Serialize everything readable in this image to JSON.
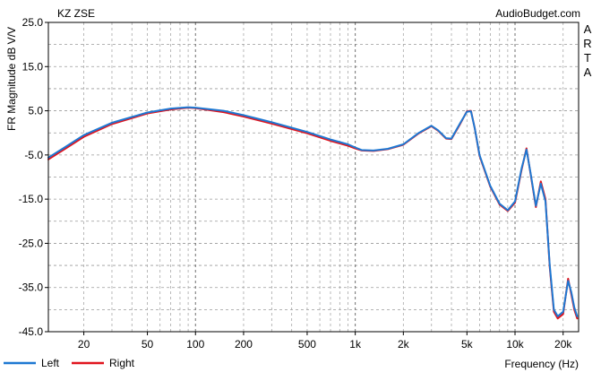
{
  "chart_data": {
    "type": "line",
    "title": "KZ ZSE",
    "source_label": "AudioBudget.com",
    "side_label": [
      "A",
      "R",
      "T",
      "A"
    ],
    "xlabel": "Frequency (Hz)",
    "ylabel": "FR Magnitude dB V/V",
    "x_scale": "log",
    "xlim": [
      12,
      25000
    ],
    "ylim": [
      -45,
      25
    ],
    "y_ticks": [
      25.0,
      15.0,
      5.0,
      -5.0,
      -15.0,
      -25.0,
      -35.0,
      -45.0
    ],
    "y_tick_labels": [
      "25.0",
      "15.0",
      "5.0",
      "-5.0",
      "-15.0",
      "-25.0",
      "-35.0",
      "-45.0"
    ],
    "x_ticks": [
      20,
      50,
      100,
      200,
      500,
      1000,
      2000,
      5000,
      10000,
      20000
    ],
    "x_tick_labels": [
      "20",
      "50",
      "100",
      "200",
      "500",
      "1k",
      "2k",
      "5k",
      "10k",
      "20k"
    ],
    "grid": true,
    "legend_position": "bottom-left",
    "series": [
      {
        "name": "Left",
        "color": "#1e78d2",
        "x": [
          12,
          15,
          20,
          30,
          50,
          70,
          90,
          100,
          150,
          200,
          300,
          500,
          700,
          900,
          1000,
          1100,
          1300,
          1600,
          2000,
          2500,
          3000,
          3300,
          3700,
          4000,
          4500,
          5000,
          5300,
          5600,
          6000,
          7000,
          8000,
          9000,
          10000,
          11000,
          11800,
          12500,
          13500,
          14500,
          15500,
          16500,
          17500,
          18500,
          20000,
          21500,
          22500,
          23500,
          24500
        ],
        "y": [
          -5.6,
          -3.4,
          -0.5,
          2.3,
          4.6,
          5.5,
          5.8,
          5.7,
          5.0,
          4.0,
          2.4,
          0.2,
          -1.5,
          -2.6,
          -3.3,
          -3.9,
          -4.0,
          -3.6,
          -2.6,
          0.0,
          1.6,
          0.6,
          -1.2,
          -1.3,
          2.0,
          4.8,
          4.9,
          1.0,
          -5.0,
          -12.0,
          -16.0,
          -17.5,
          -15.5,
          -8.0,
          -3.8,
          -9.0,
          -16.5,
          -11.5,
          -15.5,
          -30.0,
          -40.0,
          -41.5,
          -40.5,
          -33.5,
          -36.0,
          -39.5,
          -41.5
        ]
      },
      {
        "name": "Right",
        "color": "#e0141e",
        "x": [
          12,
          15,
          20,
          30,
          50,
          70,
          90,
          100,
          150,
          200,
          300,
          500,
          700,
          900,
          1000,
          1100,
          1300,
          1600,
          2000,
          2500,
          3000,
          3300,
          3700,
          4000,
          4500,
          5000,
          5300,
          5600,
          6000,
          7000,
          8000,
          9000,
          10000,
          11000,
          11800,
          12500,
          13500,
          14500,
          15500,
          16500,
          17500,
          18500,
          20000,
          21500,
          22500,
          23500,
          24500
        ],
        "y": [
          -6.0,
          -3.8,
          -0.9,
          2.0,
          4.4,
          5.3,
          5.7,
          5.6,
          4.7,
          3.7,
          2.1,
          -0.1,
          -1.8,
          -2.9,
          -3.5,
          -4.0,
          -4.1,
          -3.7,
          -2.7,
          -0.1,
          1.5,
          0.5,
          -1.3,
          -1.4,
          1.8,
          4.9,
          5.0,
          1.0,
          -5.2,
          -12.2,
          -16.2,
          -17.7,
          -15.8,
          -8.3,
          -3.5,
          -9.2,
          -16.8,
          -11.0,
          -15.0,
          -30.5,
          -40.5,
          -42.0,
          -41.0,
          -33.0,
          -36.5,
          -40.0,
          -42.0
        ]
      }
    ]
  }
}
